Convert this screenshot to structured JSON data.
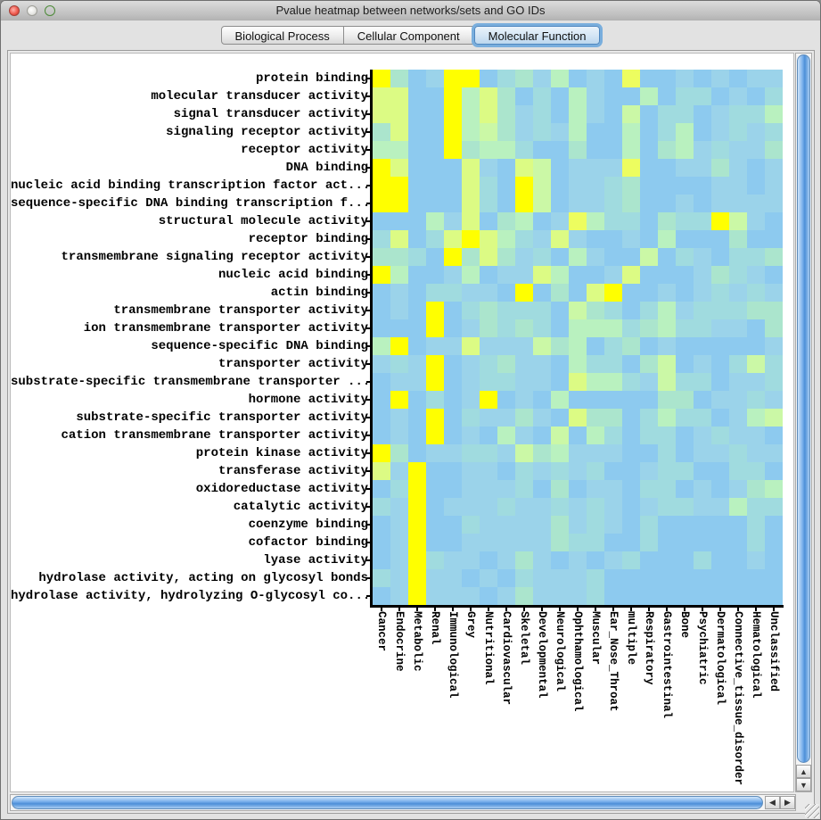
{
  "window": {
    "title": "Pvalue heatmap between networks/sets and GO IDs"
  },
  "tabs": [
    {
      "label": "Biological Process",
      "selected": false
    },
    {
      "label": "Cellular Component",
      "selected": false
    },
    {
      "label": "Molecular Function",
      "selected": true
    }
  ],
  "chart_data": {
    "type": "heatmap",
    "title": "Pvalue heatmap between networks/sets and GO IDs",
    "rows": [
      "protein binding",
      "molecular transducer activity",
      "signal transducer activity",
      "signaling receptor activity",
      "receptor activity",
      "DNA binding",
      "nucleic acid binding transcription factor act...",
      "sequence-specific DNA binding transcription f...",
      "structural molecule activity",
      "receptor binding",
      "transmembrane signaling receptor activity",
      "nucleic acid binding",
      "actin binding",
      "transmembrane transporter activity",
      "ion transmembrane transporter activity",
      "sequence-specific DNA binding",
      "transporter activity",
      "substrate-specific transmembrane transporter ...",
      "hormone activity",
      "substrate-specific transporter activity",
      "cation transmembrane transporter activity",
      "protein kinase activity",
      "transferase activity",
      "oxidoreductase activity",
      "catalytic activity",
      "coenzyme binding",
      "cofactor binding",
      "lyase activity",
      "hydrolase activity, acting on glycosyl bonds",
      "hydrolase activity, hydrolyzing O-glycosyl co..."
    ],
    "cols": [
      "Cancer",
      "Endocrine",
      "Metabolic",
      "Renal",
      "Immunological",
      "Grey",
      "Nutritional",
      "Cardiovascular",
      "Skeletal",
      "Developmental",
      "Neurological",
      "Ophthamological",
      "Muscular",
      "Ear_Nose_Throat",
      "multiple",
      "Respiratory",
      "Gastrointestinal",
      "Bone",
      "Psychiatric",
      "Dermatological",
      "Connective_tissue_disorder",
      "Hematological",
      "Unclassified"
    ],
    "palette": [
      "#8dcaef",
      "#9bd3ea",
      "#a0dbdf",
      "#abe5cd",
      "#b9f1bf",
      "#cbf8a6",
      "#dcfb84",
      "#edfd5f",
      "#ffff00"
    ],
    "scale": "0 = low significance (blue) to 8 = high significance (yellow)",
    "cells": [
      "83018802314010700101011",
      "66008463020410040220102",
      "66008463120410502201224",
      "36008453121400402401212",
      "44008344200300403412113",
      "86000610650111700113101",
      "88000620850112300001101",
      "88000620850112300101111",
      "00041603401742203228510",
      "26026864216100104000300",
      "33208363120410050210223",
      "84001401164001600013210",
      "01022110803068001012121",
      "01080232220532024122233",
      "00080132320444234221103",
      "48011611153402301000001",
      "12180123110422035010252",
      "01180122110644215220112",
      "08020180104000003301121",
      "01080211310633024220145",
      "01080104105042022012110",
      "83011221534111002011211",
      "61800110212120012200220",
      "02800111203011022010134",
      "21801112112121012211422",
      "01800211113121020000020",
      "01800111113220020000020",
      "01821101310101200020010",
      "21811010211120000000000",
      "01811101311120000000000"
    ]
  },
  "scrollbars": {
    "up_arrow": "▲",
    "down_arrow": "▼",
    "left_arrow": "◀",
    "right_arrow": "▶"
  }
}
